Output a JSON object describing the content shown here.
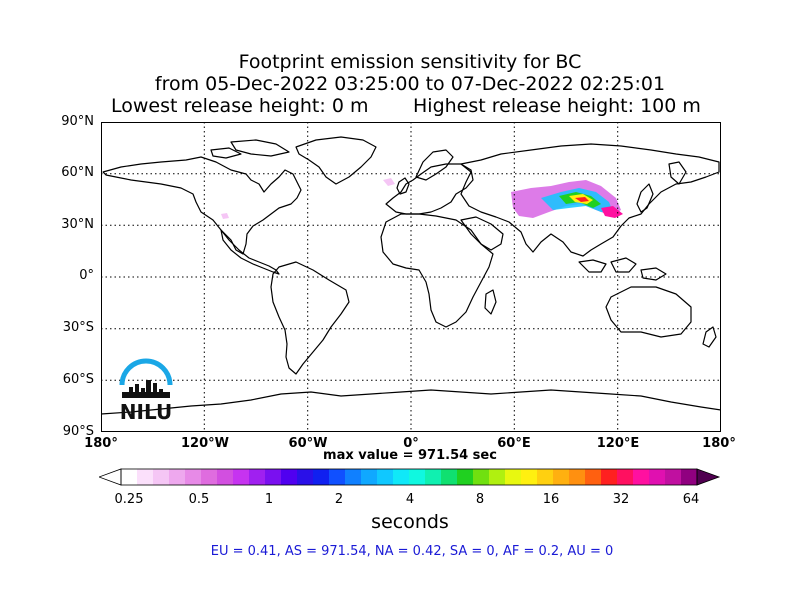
{
  "title": {
    "line1": "Footprint emission sensitivity for BC",
    "line2": "from 05-Dec-2022 03:25:00 to 07-Dec-2022 02:25:01",
    "line3a": "Lowest release height: 0 m",
    "line3b": "Highest release height: 100 m"
  },
  "axes": {
    "lat_labels": [
      "90°N",
      "60°N",
      "30°N",
      "0°",
      "30°S",
      "60°S",
      "90°S"
    ],
    "lon_labels": [
      "180°",
      "120°W",
      "60°W",
      "0°",
      "60°E",
      "120°E",
      "180°"
    ]
  },
  "max_value": "max value = 971.54 sec",
  "colorbar": {
    "ticks": [
      "0.25",
      "0.5",
      "1",
      "2",
      "4",
      "8",
      "16",
      "32",
      "64"
    ],
    "unit": "seconds",
    "colors": [
      "#ffffff",
      "#fbe0fb",
      "#f5c6f5",
      "#eea8ee",
      "#e78ae7",
      "#df6cdf",
      "#d24fe0",
      "#c633f0",
      "#a020f0",
      "#7a10f0",
      "#5000f0",
      "#2a10e8",
      "#1020f0",
      "#1050ff",
      "#1080ff",
      "#10a8ff",
      "#10c8ff",
      "#10e8f8",
      "#10f8e0",
      "#10f0b0",
      "#10e070",
      "#20d020",
      "#70e010",
      "#b0f010",
      "#e8f810",
      "#fff010",
      "#ffd010",
      "#ffb010",
      "#ff9010",
      "#ff6010",
      "#ff2020",
      "#ff1060",
      "#ff10a0",
      "#e010b0",
      "#c010a0",
      "#900080"
    ]
  },
  "regions_text": "EU = 0.41,  AS = 971.54,  NA = 0.42,  SA = 0,  AF = 0.2,  AU = 0",
  "logo": {
    "text": "NILU",
    "arc_color": "#1aa7e6",
    "icon": "nilu-logo-icon"
  }
}
